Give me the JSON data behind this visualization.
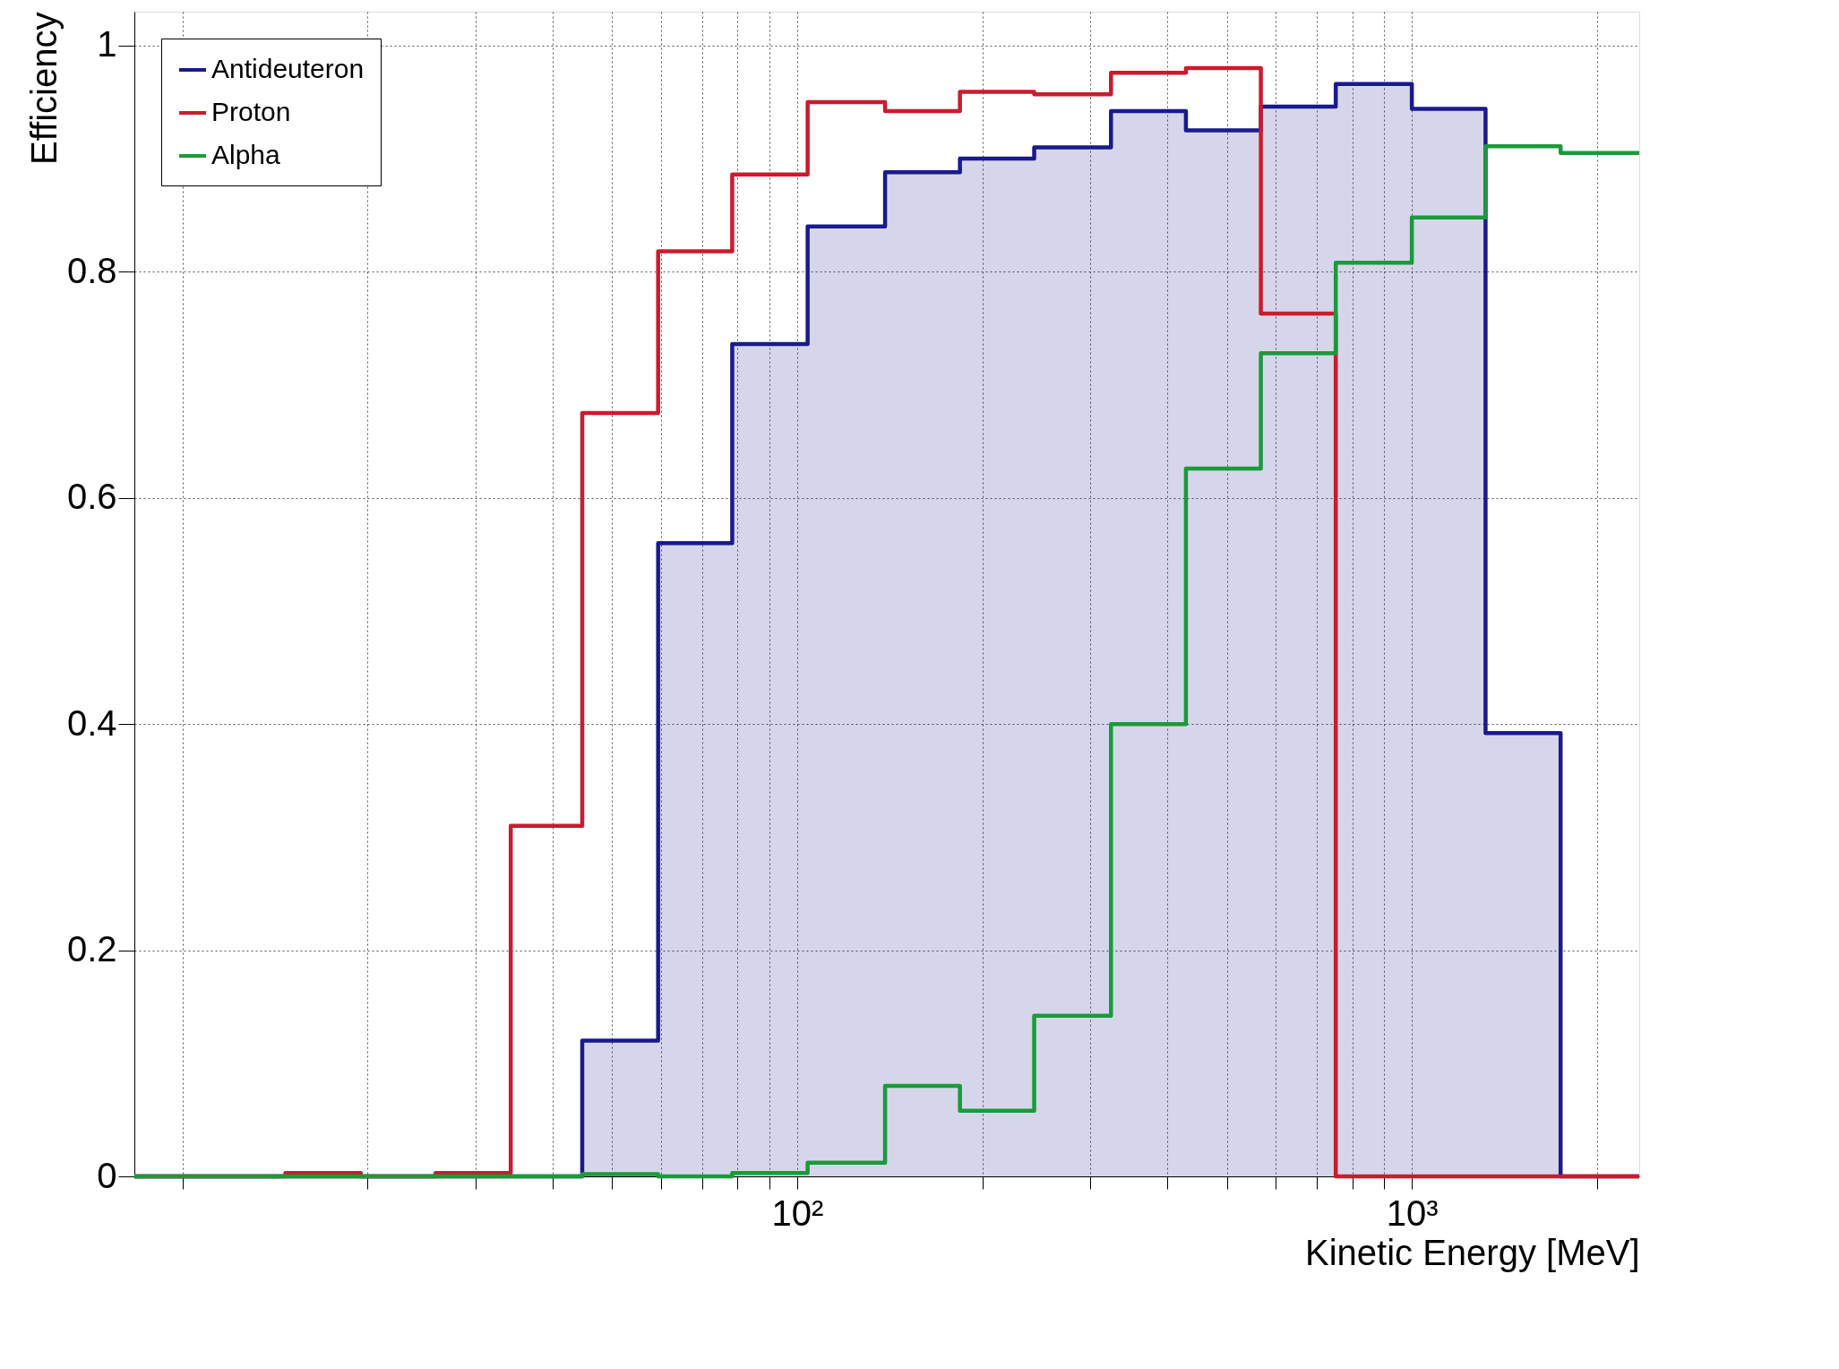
{
  "chart_data": {
    "type": "histogram",
    "xlabel": "Kinetic Energy [MeV]",
    "ylabel": "Efficiency",
    "bins": [
      8.35,
      11.1,
      14.7,
      19.5,
      25.8,
      34.2,
      44.7,
      59.4,
      78.4,
      104,
      139,
      184,
      243,
      324,
      429,
      568,
      752,
      1000,
      1318,
      1746,
      2344
    ],
    "series": [
      {
        "name": "Antideuteron",
        "color": "#1a1a8c",
        "type": "area",
        "x": [
          8.35,
          44.7,
          44.7,
          59.4,
          59.4,
          78.4,
          78.4,
          104,
          104,
          139,
          139,
          184,
          184,
          243,
          243,
          324,
          324,
          429,
          429,
          568,
          568,
          752,
          752,
          1000,
          1000,
          1318,
          1318,
          1746,
          1746,
          2344
        ],
        "values": [
          0,
          0,
          0.12,
          0.12,
          0.56,
          0.56,
          0.736,
          0.736,
          0.84,
          0.84,
          0.888,
          0.888,
          0.9,
          0.9,
          0.91,
          0.91,
          0.942,
          0.942,
          0.925,
          0.925,
          0.946,
          0.946,
          0.966,
          0.966,
          0.944,
          0.944,
          0.392,
          0.392,
          0,
          0
        ]
      },
      {
        "name": "Proton",
        "color": "#cc1a2e",
        "values": [
          0,
          0,
          0.003,
          0,
          0.003,
          0.31,
          0.675,
          0.818,
          0.886,
          0.95,
          0.942,
          0.959,
          0.957,
          0.976,
          0.98,
          0.763,
          0,
          0,
          0,
          0
        ]
      },
      {
        "name": "Alpha",
        "color": "#1a9a3a",
        "values": [
          0,
          0,
          0,
          0,
          0,
          0,
          0.002,
          0,
          0.003,
          0.012,
          0.08,
          0.058,
          0.142,
          0.4,
          0.626,
          0.728,
          0.808,
          0.848,
          0.911,
          0.905
        ]
      }
    ],
    "log": "x",
    "xlim": [
      8.35,
      2344
    ],
    "ylim": [
      0,
      1.03
    ],
    "xticks": [
      {
        "value": 10,
        "label": null
      },
      {
        "value": 20,
        "label": null
      },
      {
        "value": 30,
        "label": null
      },
      {
        "value": 40,
        "label": null
      },
      {
        "value": 50,
        "label": null
      },
      {
        "value": 60,
        "label": null
      },
      {
        "value": 70,
        "label": null
      },
      {
        "value": 80,
        "label": null
      },
      {
        "value": 90,
        "label": null
      },
      {
        "value": 100,
        "label": "10²"
      },
      {
        "value": 200,
        "label": null
      },
      {
        "value": 300,
        "label": null
      },
      {
        "value": 400,
        "label": null
      },
      {
        "value": 500,
        "label": null
      },
      {
        "value": 600,
        "label": null
      },
      {
        "value": 700,
        "label": null
      },
      {
        "value": 800,
        "label": null
      },
      {
        "value": 900,
        "label": null
      },
      {
        "value": 1000,
        "label": "10³"
      },
      {
        "value": 2000,
        "label": null
      }
    ],
    "yticks": [
      0,
      0.2,
      0.4,
      0.6,
      0.8,
      1
    ],
    "grid": true,
    "legend": "top left",
    "marker": "none",
    "line_style": "solid"
  }
}
